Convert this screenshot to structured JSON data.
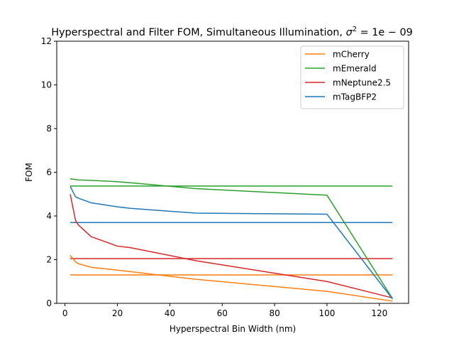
{
  "chart_data": {
    "type": "line",
    "title": "Hyperspectral and Filter FOM, Simultaneous Illumination, ",
    "title_sigma": "σ",
    "title_sup": "2",
    "title_tail": " = 1e − 09",
    "xlabel": "Hyperspectral Bin Width (nm)",
    "ylabel": "FOM",
    "xlim": [
      -3.15,
      131.15
    ],
    "ylim": [
      0,
      12
    ],
    "xticks": [
      0,
      20,
      40,
      60,
      80,
      100,
      120
    ],
    "yticks": [
      0,
      2,
      4,
      6,
      8,
      10,
      12
    ],
    "legend_position": "upper right",
    "grid": false,
    "series": [
      {
        "name": "mCherry",
        "color": "#ff7f0e",
        "x": [
          2,
          4,
          5,
          10,
          20,
          25,
          50,
          100,
          125
        ],
        "y": [
          2.2,
          1.9,
          1.82,
          1.65,
          1.52,
          1.45,
          1.1,
          0.55,
          0.1
        ]
      },
      {
        "name": "mEmerald",
        "color": "#2ca02c",
        "x": [
          2,
          4,
          5,
          10,
          20,
          25,
          50,
          100,
          125
        ],
        "y": [
          5.7,
          5.67,
          5.65,
          5.63,
          5.57,
          5.52,
          5.25,
          4.95,
          0.22
        ]
      },
      {
        "name": "mNeptune2.5",
        "color": "#d62728",
        "x": [
          2,
          4,
          5,
          10,
          20,
          25,
          50,
          100,
          125
        ],
        "y": [
          5.0,
          3.8,
          3.6,
          3.05,
          2.62,
          2.55,
          1.95,
          1.0,
          0.25
        ]
      },
      {
        "name": "mTagBFP2",
        "color": "#1f77b4",
        "x": [
          2,
          4,
          5,
          10,
          20,
          25,
          50,
          100,
          125
        ],
        "y": [
          5.35,
          4.88,
          4.82,
          4.6,
          4.42,
          4.35,
          4.13,
          4.08,
          0.2
        ]
      }
    ],
    "reference_lines": [
      {
        "series": "mCherry",
        "color": "#ff7f0e",
        "x": [
          2,
          125
        ],
        "y": 1.3
      },
      {
        "series": "mEmerald",
        "color": "#2ca02c",
        "x": [
          2,
          125
        ],
        "y": 5.37
      },
      {
        "series": "mNeptune2.5",
        "color": "#d62728",
        "x": [
          2,
          125
        ],
        "y": 2.05
      },
      {
        "series": "mTagBFP2",
        "color": "#1f77b4",
        "x": [
          2,
          125
        ],
        "y": 3.7
      }
    ]
  }
}
